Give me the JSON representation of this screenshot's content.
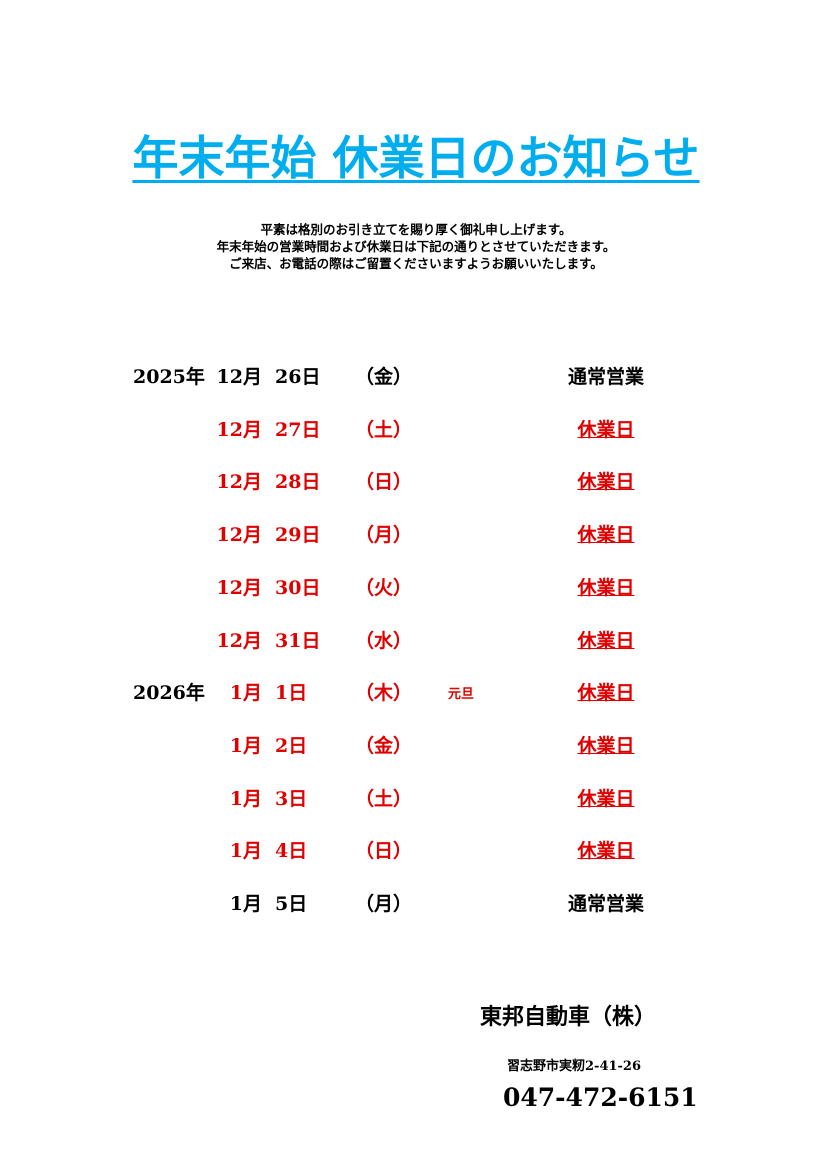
{
  "title": "年末年始 休業日のお知らせ",
  "intro": [
    "平素は格別のお引き立てを賜り厚く御礼申し上げます。",
    "年末年始の営業時間および休業日は下記の通りとさせていただきます。",
    "ご来店、お電話の際はご留置くださいますようお願いいたします。"
  ],
  "accent_color": "#00aeef",
  "closed_color": "#e00000",
  "rows": [
    {
      "year": "2025年",
      "month": "12月",
      "day": "26日",
      "weekday": "（金）",
      "note": "",
      "status": "通常営業",
      "closed": false
    },
    {
      "year": "",
      "month": "12月",
      "day": "27日",
      "weekday": "（土）",
      "note": "",
      "status": "休業日",
      "closed": true
    },
    {
      "year": "",
      "month": "12月",
      "day": "28日",
      "weekday": "（日）",
      "note": "",
      "status": "休業日",
      "closed": true
    },
    {
      "year": "",
      "month": "12月",
      "day": "29日",
      "weekday": "（月）",
      "note": "",
      "status": "休業日",
      "closed": true
    },
    {
      "year": "",
      "month": "12月",
      "day": "30日",
      "weekday": "（火）",
      "note": "",
      "status": "休業日",
      "closed": true
    },
    {
      "year": "",
      "month": "12月",
      "day": "31日",
      "weekday": "（水）",
      "note": "",
      "status": "休業日",
      "closed": true
    },
    {
      "year": "2026年",
      "month": "1月",
      "day": "1日",
      "weekday": "（木）",
      "note": "元旦",
      "status": "休業日",
      "closed": true
    },
    {
      "year": "",
      "month": "1月",
      "day": "2日",
      "weekday": "（金）",
      "note": "",
      "status": "休業日",
      "closed": true
    },
    {
      "year": "",
      "month": "1月",
      "day": "3日",
      "weekday": "（土）",
      "note": "",
      "status": "休業日",
      "closed": true
    },
    {
      "year": "",
      "month": "1月",
      "day": "4日",
      "weekday": "（日）",
      "note": "",
      "status": "休業日",
      "closed": true
    },
    {
      "year": "",
      "month": "1月",
      "day": "5日",
      "weekday": "（月）",
      "note": "",
      "status": "通常営業",
      "closed": false
    }
  ],
  "company": "東邦自動車（株）",
  "address": "習志野市実籾2-41-26",
  "phone": "047-472-6151"
}
